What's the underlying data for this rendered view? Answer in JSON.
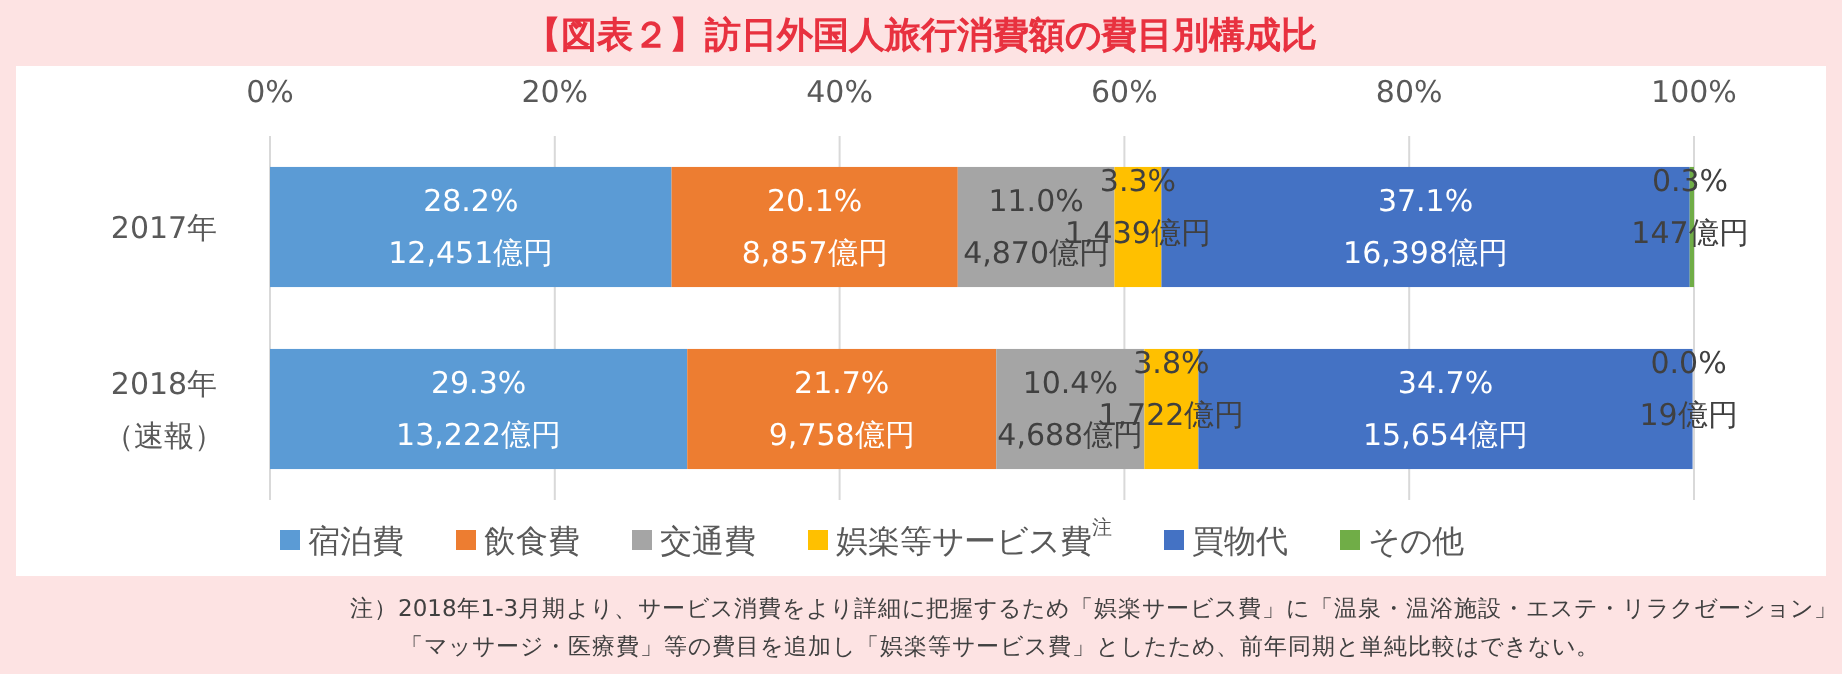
{
  "chart_data": {
    "type": "bar",
    "orientation": "horizontal",
    "stacked": true,
    "title": "【図表２】訪日外国人旅行消費額の費目別構成比",
    "categories": [
      "2017年",
      "2018年（速報）"
    ],
    "xlim": [
      0,
      100
    ],
    "xticks": [
      {
        "value": 0,
        "label": "0%"
      },
      {
        "value": 20,
        "label": "20%"
      },
      {
        "value": 40,
        "label": "40%"
      },
      {
        "value": 60,
        "label": "60%"
      },
      {
        "value": 80,
        "label": "80%"
      },
      {
        "value": 100,
        "label": "100%"
      }
    ],
    "grid": "x",
    "legend": "bottom",
    "series": [
      {
        "name": "宿泊費",
        "color": "#5b9bd5",
        "values": [
          28.2,
          29.3
        ],
        "value_labels": [
          "28.2%\n12,451億円",
          "29.3%\n13,222億円"
        ]
      },
      {
        "name": "飲食費",
        "color": "#ed7d31",
        "values": [
          20.1,
          21.7
        ],
        "value_labels": [
          "20.1%\n8,857億円",
          "21.7%\n9,758億円"
        ]
      },
      {
        "name": "交通費",
        "color": "#a5a5a5",
        "values": [
          11.0,
          10.4
        ],
        "value_labels": [
          "11.0%\n4,870億円",
          "10.4%\n4,688億円"
        ]
      },
      {
        "name": "娯楽等サービス費$^{注}$",
        "color": "#ffc000",
        "values": [
          3.3,
          3.8
        ],
        "value_labels": [
          "3.3%\n1,439億円",
          "3.8%\n1,722億円"
        ]
      },
      {
        "name": "買物代",
        "color": "#4472c4",
        "values": [
          37.1,
          34.7
        ],
        "value_labels": [
          "37.1%\n16,398億円",
          "34.7%\n15,654億円"
        ]
      },
      {
        "name": "その他",
        "color": "#70ad47",
        "values": [
          0.3,
          0.0
        ],
        "value_labels": [
          "0.3%\n147億円",
          "0.0%\n19億円"
        ]
      }
    ],
    "annotations": [
      "注）2018年1-3月期より、サービス消費をより詳細に把握するため「娯楽サービス費」に「温泉・温浴施設・エステ・リラクゼーション」",
      "「マッサージ・医療費」等の費目を追加し「娯楽等サービス費」としたため、前年同期と単純比較はできない。"
    ]
  }
}
